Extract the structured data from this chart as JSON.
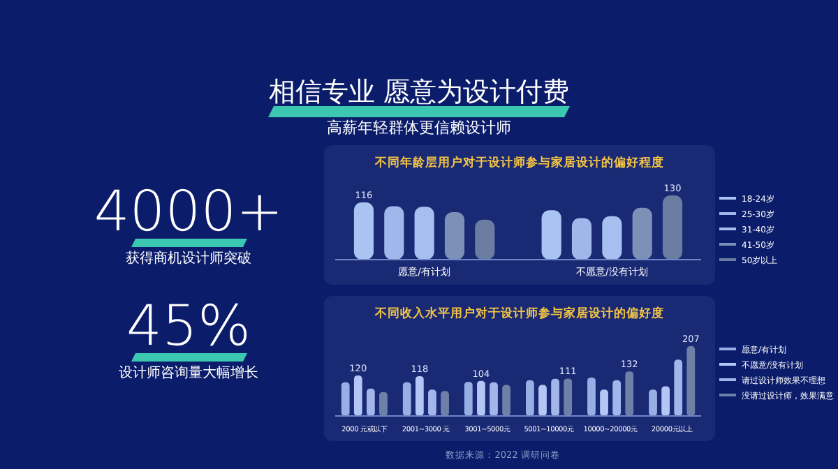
{
  "chart_data": [
    {
      "type": "other",
      "title": "相信专业 愿意为设计付费",
      "subtitle": "高薪年轻群体更信赖设计师",
      "annotations": [
        "4000+",
        "获得商机设计师突破",
        "45%",
        "设计师咨询量大幅增长"
      ]
    },
    {
      "type": "bar",
      "title": "不同年龄层用户对于设计师参与家居设计的偏好程度",
      "categories": [
        "愿意/有计划",
        "不愿意/没有计划"
      ],
      "legend": "right",
      "series": [
        {
          "name": "18-24岁",
          "color": "#a9c4f2",
          "values": [
            116,
            100
          ],
          "value_labels": [
            "116",
            null
          ]
        },
        {
          "name": "25-30岁",
          "color": "#9fb7ea",
          "values": [
            108,
            84
          ],
          "value_labels": [
            null,
            null
          ]
        },
        {
          "name": "31-40岁",
          "color": "#a6bff0",
          "values": [
            107,
            88
          ],
          "value_labels": [
            null,
            null
          ]
        },
        {
          "name": "41-50岁",
          "color": "#7d90b8",
          "values": [
            96,
            105
          ],
          "value_labels": [
            null,
            null
          ]
        },
        {
          "name": "50岁以上",
          "color": "#6a7ca2",
          "values": [
            81,
            130
          ],
          "value_labels": [
            null,
            "130"
          ]
        }
      ]
    },
    {
      "type": "bar",
      "title": "不同收入水平用户对于设计师参与家居设计的偏好度",
      "categories": [
        "2000 元或以下",
        "2001~3000 元",
        "3001~5000元",
        "5001~10000元",
        "10000~20000元",
        "20000元以上"
      ],
      "legend": "right",
      "series": [
        {
          "name": "愿意/有计划",
          "color": "#98afe6",
          "values": [
            100,
            100,
            101,
            106,
            114,
            78
          ],
          "value_labels": [
            null,
            null,
            null,
            null,
            null,
            null
          ]
        },
        {
          "name": "不愿意/没有计划",
          "color": "#b3c6f5",
          "values": [
            120,
            118,
            104,
            92,
            78,
            88
          ],
          "value_labels": [
            "120",
            "118",
            "104",
            null,
            null,
            null
          ]
        },
        {
          "name": "请过设计师效果不理想",
          "color": "#a3b6ec",
          "values": [
            81,
            78,
            100,
            110,
            106,
            167
          ],
          "value_labels": [
            null,
            null,
            null,
            null,
            null,
            null
          ]
        },
        {
          "name": "没请过设计师，效果满意",
          "color": "#6f80a8",
          "values": [
            71,
            74,
            92,
            111,
            132,
            207
          ],
          "value_labels": [
            null,
            null,
            null,
            "111",
            "132",
            "207"
          ]
        }
      ],
      "annotations": [
        "数据来源：2022 调研问卷"
      ]
    }
  ]
}
